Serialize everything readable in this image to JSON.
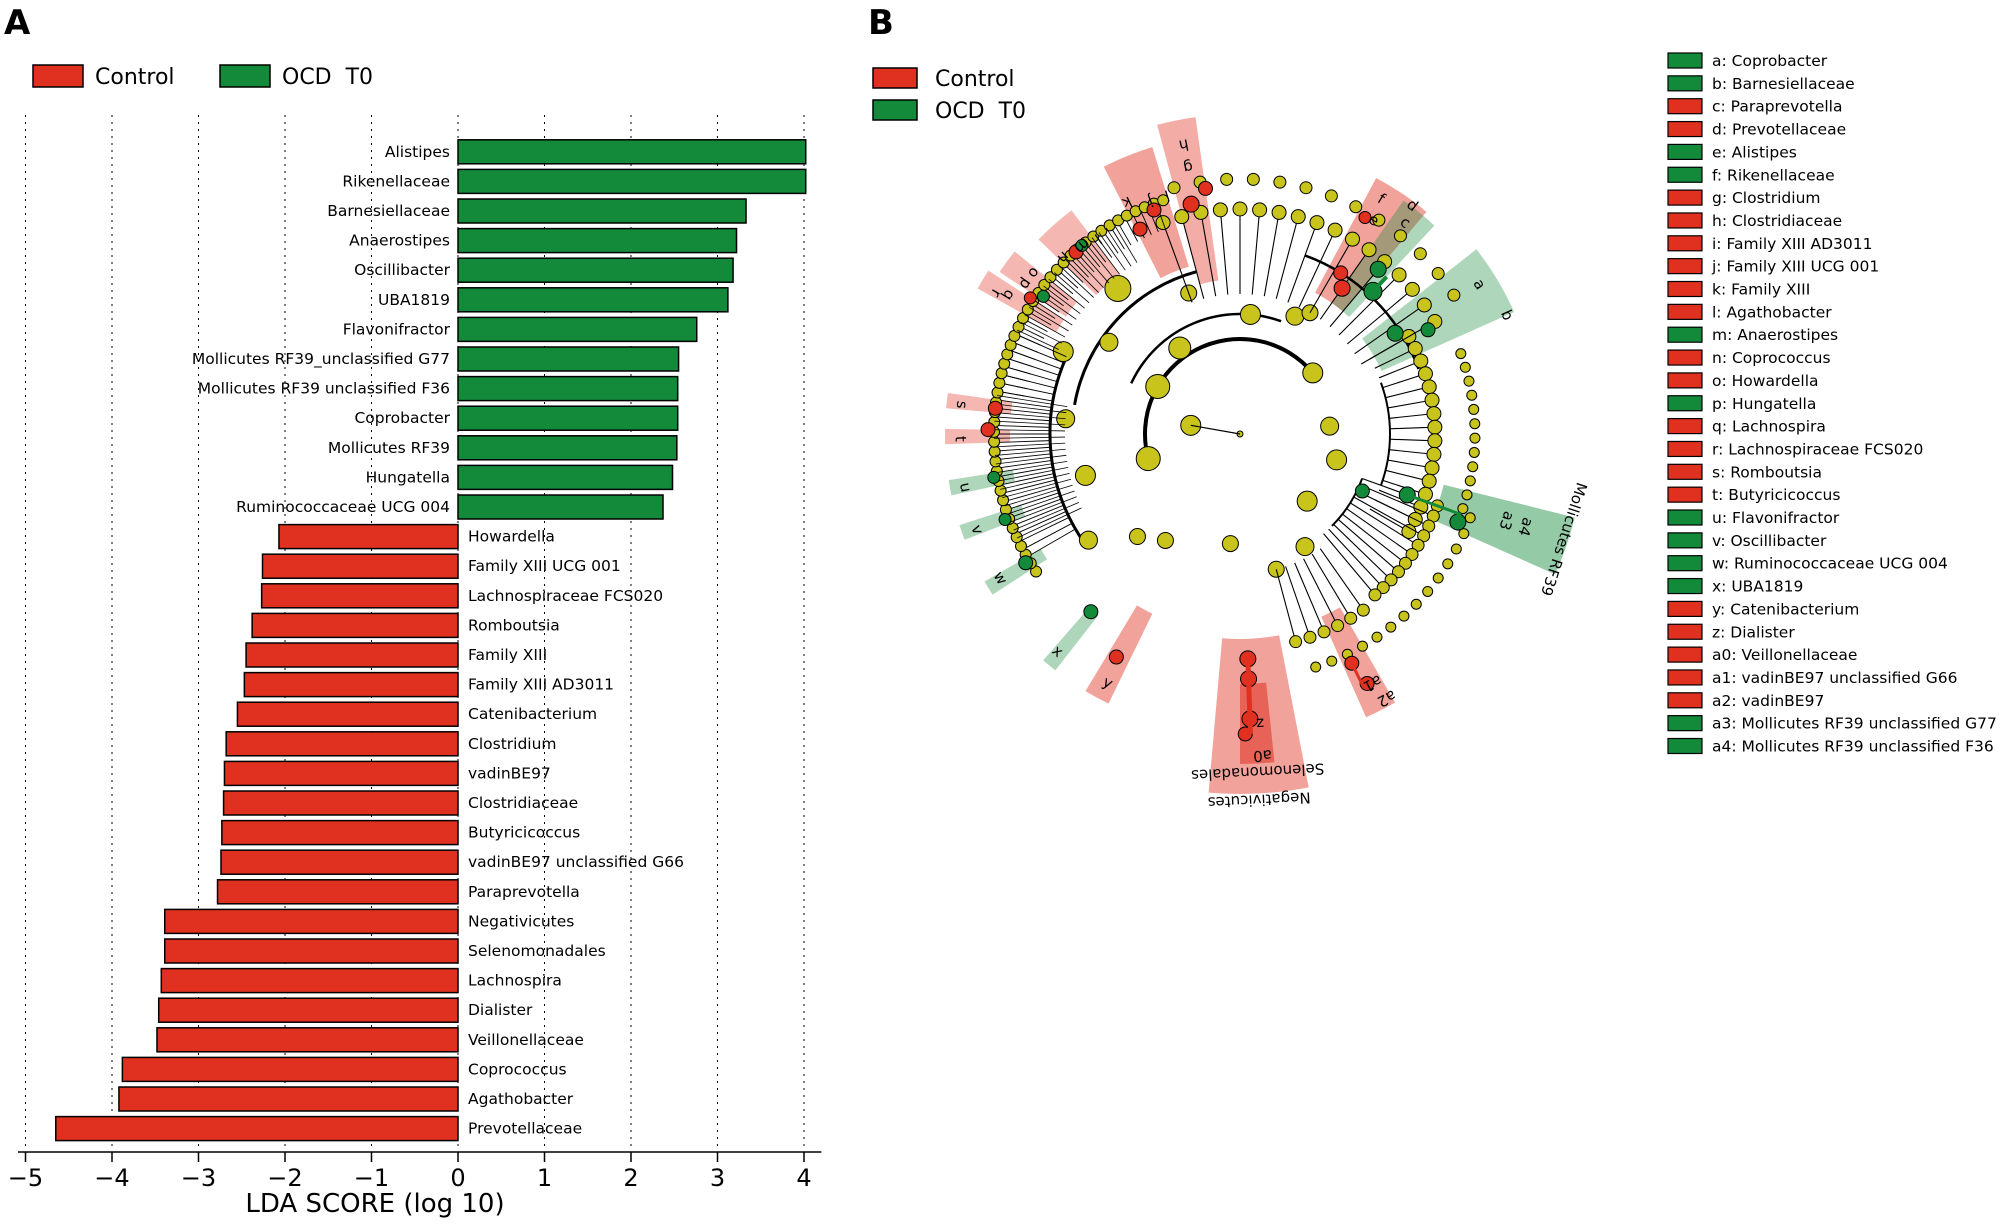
{
  "panels": {
    "a": "A",
    "b": "B"
  },
  "colors": {
    "control": "#e03020",
    "ocd": "#138a3a",
    "node": "#c8c41c",
    "control_shade": "#f3b0ac",
    "ocd_shade": "#a9dcbb"
  },
  "chart_data": [
    {
      "type": "bar",
      "orientation": "horizontal",
      "title": "",
      "xlabel": "LDA SCORE (log 10)",
      "xlim": [
        -5,
        4.4
      ],
      "xticks": [
        -5,
        -4,
        -3,
        -2,
        -1,
        0,
        1,
        2,
        3,
        4
      ],
      "xtick_labels": [
        "−5",
        "−4",
        "−3",
        "−2",
        "−1",
        "0",
        "1",
        "2",
        "3",
        "4"
      ],
      "grid": "vertical dotted",
      "legend": [
        {
          "name": "Control",
          "color": "#e03020"
        },
        {
          "name": "OCD  T0",
          "color": "#138a3a"
        }
      ],
      "series": [
        {
          "name": "OCD  T0",
          "categories": [
            "Alistipes",
            "Rikenellaceae",
            "Barnesiellaceae",
            "Anaerostipes",
            "Oscillibacter",
            "UBA1819",
            "Flavonifractor",
            "Mollicutes  RF39_unclassified  G77",
            "Mollicutes  RF39  unclassified  F36",
            "Coprobacter",
            "Mollicutes  RF39",
            "Hungatella",
            "Ruminococcaceae  UCG  004"
          ],
          "values": [
            4.02,
            4.02,
            3.33,
            3.22,
            3.18,
            3.12,
            2.76,
            2.55,
            2.54,
            2.54,
            2.53,
            2.48,
            2.37
          ]
        },
        {
          "name": "Control",
          "categories": [
            "Howardella",
            "Family  XIII  UCG  001",
            "Lachnospiraceae  FCS020",
            "Romboutsia",
            "Family  XIII",
            "Family  XIII  AD3011",
            "Catenibacterium",
            "Clostridium",
            "vadinBE97",
            "Clostridiaceae",
            "Butyricicoccus",
            "vadinBE97  unclassified  G66",
            "Paraprevotella",
            "Negativicutes",
            "Selenomonadales",
            "Lachnospira",
            "Dialister",
            "Veillonellaceae",
            "Coprococcus",
            "Agathobacter",
            "Prevotellaceae"
          ],
          "values": [
            -2.07,
            -2.26,
            -2.27,
            -2.38,
            -2.45,
            -2.47,
            -2.55,
            -2.68,
            -2.7,
            -2.71,
            -2.73,
            -2.74,
            -2.78,
            -3.39,
            -3.39,
            -3.43,
            -3.46,
            -3.48,
            -3.88,
            -3.92,
            -4.65
          ]
        }
      ]
    },
    {
      "type": "cladogram",
      "legend": [
        {
          "name": "Control",
          "color": "#e03020"
        },
        {
          "name": "OCD  T0",
          "color": "#138a3a"
        }
      ],
      "clade_labels": [
        "a",
        "b",
        "c",
        "d",
        "e",
        "f",
        "g",
        "h",
        "i",
        "j",
        "k",
        "l",
        "m",
        "n",
        "o",
        "p",
        "q",
        "r",
        "s",
        "t",
        "u",
        "v",
        "w",
        "x",
        "y",
        "z",
        "a0",
        "a1",
        "a2",
        "a3",
        "a4"
      ],
      "text_labels": [
        "Mollicutes  RF39",
        "Selenomonadales",
        "Negativicutes"
      ],
      "key": [
        {
          "code": "a",
          "text": "a: Coprobacter",
          "group": "ocd"
        },
        {
          "code": "b",
          "text": "b: Barnesiellaceae",
          "group": "ocd"
        },
        {
          "code": "c",
          "text": "c: Paraprevotella",
          "group": "control"
        },
        {
          "code": "d",
          "text": "d: Prevotellaceae",
          "group": "control"
        },
        {
          "code": "e",
          "text": "e: Alistipes",
          "group": "ocd"
        },
        {
          "code": "f",
          "text": "f: Rikenellaceae",
          "group": "ocd"
        },
        {
          "code": "g",
          "text": "g: Clostridium",
          "group": "control"
        },
        {
          "code": "h",
          "text": "h: Clostridiaceae",
          "group": "control"
        },
        {
          "code": "i",
          "text": "i: Family  XIII  AD3011",
          "group": "control"
        },
        {
          "code": "j",
          "text": "j: Family  XIII  UCG  001",
          "group": "control"
        },
        {
          "code": "k",
          "text": "k: Family  XIII",
          "group": "control"
        },
        {
          "code": "l",
          "text": "l: Agathobacter",
          "group": "control"
        },
        {
          "code": "m",
          "text": "m: Anaerostipes",
          "group": "ocd"
        },
        {
          "code": "n",
          "text": "n: Coprococcus",
          "group": "control"
        },
        {
          "code": "o",
          "text": "o: Howardella",
          "group": "control"
        },
        {
          "code": "p",
          "text": "p: Hungatella",
          "group": "ocd"
        },
        {
          "code": "q",
          "text": "q: Lachnospira",
          "group": "control"
        },
        {
          "code": "r",
          "text": "r: Lachnospiraceae  FCS020",
          "group": "control"
        },
        {
          "code": "s",
          "text": "s: Romboutsia",
          "group": "control"
        },
        {
          "code": "t",
          "text": "t: Butyricicoccus",
          "group": "control"
        },
        {
          "code": "u",
          "text": "u: Flavonifractor",
          "group": "ocd"
        },
        {
          "code": "v",
          "text": "v: Oscillibacter",
          "group": "ocd"
        },
        {
          "code": "w",
          "text": "w: Ruminococcaceae  UCG  004",
          "group": "ocd"
        },
        {
          "code": "x",
          "text": "x: UBA1819",
          "group": "ocd"
        },
        {
          "code": "y",
          "text": "y: Catenibacterium",
          "group": "control"
        },
        {
          "code": "z",
          "text": "z: Dialister",
          "group": "control"
        },
        {
          "code": "a0",
          "text": "a0: Veillonellaceae",
          "group": "control"
        },
        {
          "code": "a1",
          "text": "a1: vadinBE97  unclassified  G66",
          "group": "control"
        },
        {
          "code": "a2",
          "text": "a2: vadinBE97",
          "group": "control"
        },
        {
          "code": "a3",
          "text": "a3: Mollicutes  RF39  unclassified  G77",
          "group": "ocd"
        },
        {
          "code": "a4",
          "text": "a4: Mollicutes  RF39  unclassified  F36",
          "group": "ocd"
        }
      ]
    }
  ]
}
